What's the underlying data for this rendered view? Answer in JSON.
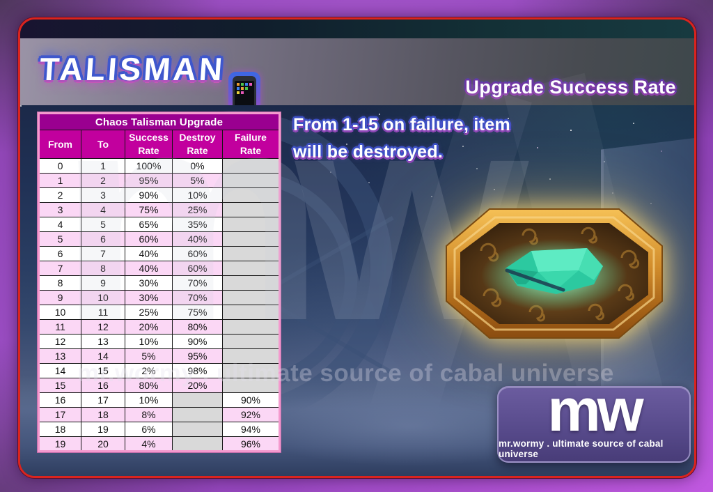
{
  "header": {
    "title": "TALISMAN",
    "subtitle": "Upgrade Success Rate",
    "phone_icon": "smartphone-icon"
  },
  "note": {
    "line1": "From 1-15 on failure, item",
    "line2": "will be destroyed."
  },
  "table": {
    "title": "Chaos Talisman Upgrade",
    "columns": [
      "From",
      "To",
      "Success Rate",
      "Destroy Rate",
      "Failure Rate"
    ],
    "rows": [
      [
        "0",
        "1",
        "100%",
        "0%",
        ""
      ],
      [
        "1",
        "2",
        "95%",
        "5%",
        ""
      ],
      [
        "2",
        "3",
        "90%",
        "10%",
        ""
      ],
      [
        "3",
        "4",
        "75%",
        "25%",
        ""
      ],
      [
        "4",
        "5",
        "65%",
        "35%",
        ""
      ],
      [
        "5",
        "6",
        "60%",
        "40%",
        ""
      ],
      [
        "6",
        "7",
        "40%",
        "60%",
        ""
      ],
      [
        "7",
        "8",
        "40%",
        "60%",
        ""
      ],
      [
        "8",
        "9",
        "30%",
        "70%",
        ""
      ],
      [
        "9",
        "10",
        "30%",
        "70%",
        ""
      ],
      [
        "10",
        "11",
        "25%",
        "75%",
        ""
      ],
      [
        "11",
        "12",
        "20%",
        "80%",
        ""
      ],
      [
        "12",
        "13",
        "10%",
        "90%",
        ""
      ],
      [
        "13",
        "14",
        "5%",
        "95%",
        ""
      ],
      [
        "14",
        "15",
        "2%",
        "98%",
        ""
      ],
      [
        "15",
        "16",
        "80%",
        "20%",
        ""
      ],
      [
        "16",
        "17",
        "10%",
        "",
        "90%"
      ],
      [
        "17",
        "18",
        "8%",
        "",
        "92%"
      ],
      [
        "18",
        "19",
        "6%",
        "",
        "94%"
      ],
      [
        "19",
        "20",
        "4%",
        "",
        "96%"
      ]
    ]
  },
  "watermark": {
    "initials": "mw",
    "line": "mr.wormy . ultimate source of cabal universe"
  },
  "logo": {
    "initials": "mw",
    "tagline": "mr.wormy . ultimate source of cabal universe"
  },
  "illustration": {
    "name": "chaos-talisman",
    "description": "gold octagonal talisman with teal gem"
  },
  "colors": {
    "table_title_bg": "#9a0090",
    "table_header_bg": "#c2009e",
    "row_pink": "#fbd7f5",
    "empty_cell_gray": "#d9d9d9",
    "table_border_pink": "#f49ace",
    "panel_border_red": "#da241e",
    "outer_purple": "#9d4fc6",
    "gem_teal": "#3ddfb2",
    "talisman_gold": "#d99433"
  }
}
